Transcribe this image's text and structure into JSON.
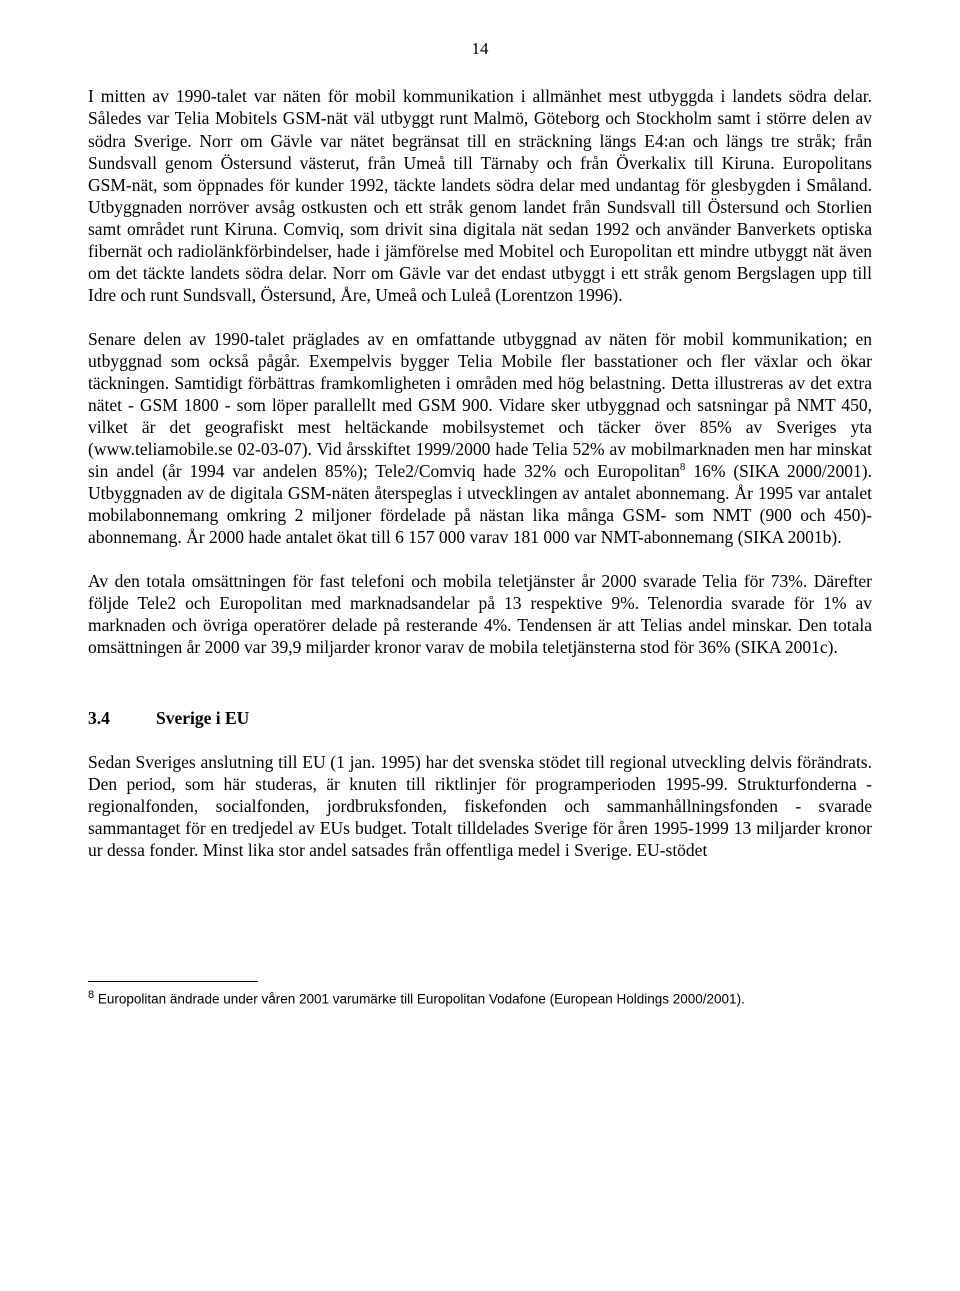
{
  "pageNumber": "14",
  "paragraphs": {
    "p1": "I mitten av 1990-talet var näten för mobil kommunikation i allmänhet mest utbyggda i landets södra delar. Således var Telia Mobitels GSM-nät väl utbyggt runt Malmö, Göteborg och Stockholm samt i större delen av södra Sverige. Norr om Gävle var nätet begränsat till en sträckning längs E4:an och längs tre stråk; från Sundsvall genom Östersund västerut, från Umeå till Tärnaby och från Överkalix till Kiruna. Europolitans GSM-nät, som öppnades för kunder 1992, täckte landets södra delar med undantag för glesbygden i Småland. Utbyggnaden norröver avsåg ostkusten och ett stråk genom landet från Sundsvall till Östersund och Storlien samt området runt Kiruna. Comviq, som drivit sina digitala nät sedan 1992 och använder Banverkets optiska fibernät och radiolänkförbindelser, hade i jämförelse med Mobitel och Europolitan ett mindre utbyggt nät även om det täckte landets södra delar. Norr om Gävle var det endast utbyggt i ett stråk genom Bergslagen upp till Idre och runt Sundsvall, Östersund, Åre, Umeå och Luleå (Lorentzon 1996).",
    "p2a": "Senare delen av 1990-talet präglades av en omfattande utbyggnad av näten för mobil kommunikation; en utbyggnad som också pågår. Exempelvis bygger Telia Mobile fler basstationer och fler växlar och ökar täckningen. Samtidigt förbättras framkomligheten i områden med hög belastning. Detta illustreras av det extra nätet - GSM 1800 - som löper parallellt med GSM 900. Vidare sker utbyggnad och satsningar på NMT 450, vilket är det geografiskt mest heltäckande mobilsystemet och täcker över 85% av Sveriges yta (www.teliamobile.se 02-03-07). Vid årsskiftet 1999/2000 hade Telia 52% av mobilmarknaden men har minskat sin andel (år 1994 var andelen 85%); Tele2/Comviq hade 32% och Europolitan",
    "p2b": " 16% (SIKA 2000/2001). Utbyggnaden av de digitala GSM-näten återspeglas i utvecklingen av antalet abonnemang. År 1995 var antalet mobilabonnemang omkring 2 miljoner fördelade på nästan lika många GSM- som NMT (900 och 450)- abonnemang. År 2000 hade antalet ökat till 6 157 000 varav 181 000 var NMT-abonnemang (SIKA 2001b).",
    "p3": "Av den totala omsättningen för fast telefoni och mobila teletjänster år 2000 svarade Telia för 73%. Därefter följde Tele2 och Europolitan med marknadsandelar på 13 respektive 9%. Telenordia svarade för 1% av marknaden och övriga operatörer delade på resterande 4%. Tendensen är att Telias andel minskar. Den totala omsättningen år 2000 var 39,9 miljarder kronor varav de mobila teletjänsterna stod för 36% (SIKA 2001c).",
    "p4": "Sedan Sveriges anslutning till EU (1 jan. 1995) har det svenska stödet till regional utveckling delvis förändrats. Den period, som här studeras, är knuten till riktlinjer för programperioden 1995-99. Strukturfonderna - regionalfonden, socialfonden, jordbruksfonden, fiskefonden och sammanhållningsfonden - svarade sammantaget för en tredjedel av EUs budget. Totalt tilldelades Sverige för åren 1995-1999 13 miljarder kronor ur dessa fonder. Minst lika stor andel satsades från offentliga medel i Sverige. EU-stödet"
  },
  "heading": {
    "num": "3.4",
    "text": "Sverige i EU"
  },
  "footnote": {
    "marker": "8",
    "text": " Europolitan ändrade under våren 2001 varumärke till Europolitan Vodafone (European Holdings 2000/2001)."
  }
}
